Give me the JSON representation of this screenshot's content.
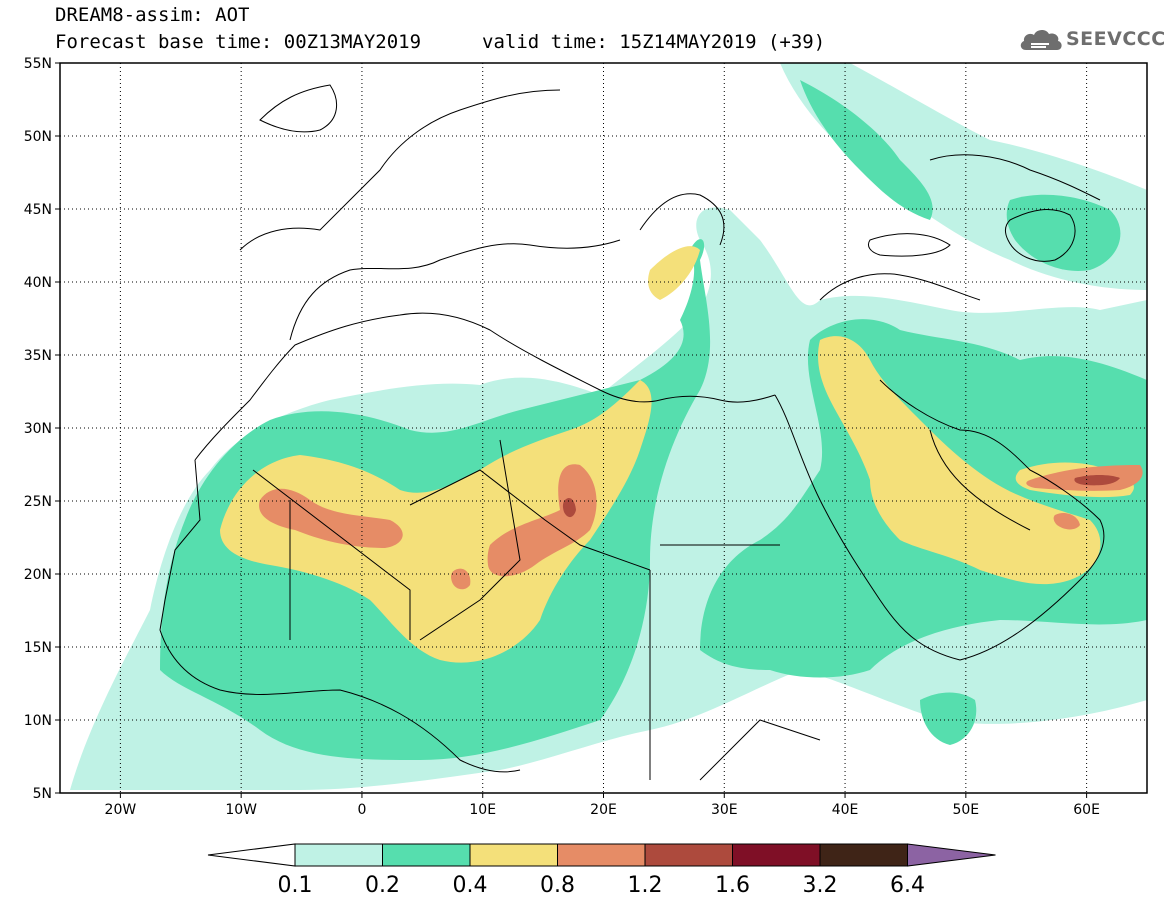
{
  "header": {
    "title": "DREAM8-assim: AOT",
    "base_time": "Forecast base time: 00Z13MAY2019",
    "valid_time": "valid time: 15Z14MAY2019 (+39)"
  },
  "logo": {
    "text": "SEEVCCC",
    "icon": "cloud-icon"
  },
  "map": {
    "lon_range": [
      -25,
      65
    ],
    "lat_range": [
      5,
      55
    ],
    "lat_ticks": [
      {
        "value": 55,
        "label": "55N"
      },
      {
        "value": 50,
        "label": "50N"
      },
      {
        "value": 45,
        "label": "45N"
      },
      {
        "value": 40,
        "label": "40N"
      },
      {
        "value": 35,
        "label": "35N"
      },
      {
        "value": 30,
        "label": "30N"
      },
      {
        "value": 25,
        "label": "25N"
      },
      {
        "value": 20,
        "label": "20N"
      },
      {
        "value": 15,
        "label": "15N"
      },
      {
        "value": 10,
        "label": "10N"
      },
      {
        "value": 5,
        "label": "5N"
      }
    ],
    "lon_ticks": [
      {
        "value": -20,
        "label": "20W"
      },
      {
        "value": -10,
        "label": "10W"
      },
      {
        "value": 0,
        "label": "0"
      },
      {
        "value": 10,
        "label": "10E"
      },
      {
        "value": 20,
        "label": "20E"
      },
      {
        "value": 30,
        "label": "30E"
      },
      {
        "value": 40,
        "label": "40E"
      },
      {
        "value": 50,
        "label": "50E"
      },
      {
        "value": 60,
        "label": "60E"
      }
    ],
    "grid": true
  },
  "colorbar": {
    "labels": [
      "0.1",
      "0.2",
      "0.4",
      "0.8",
      "1.2",
      "1.6",
      "3.2",
      "6.4"
    ],
    "colors": [
      "#ffffff",
      "#bff2e5",
      "#56deae",
      "#f4e07a",
      "#e68c66",
      "#ad4a3d",
      "#7f0f26",
      "#3f2417",
      "#8c63a3"
    ]
  }
}
